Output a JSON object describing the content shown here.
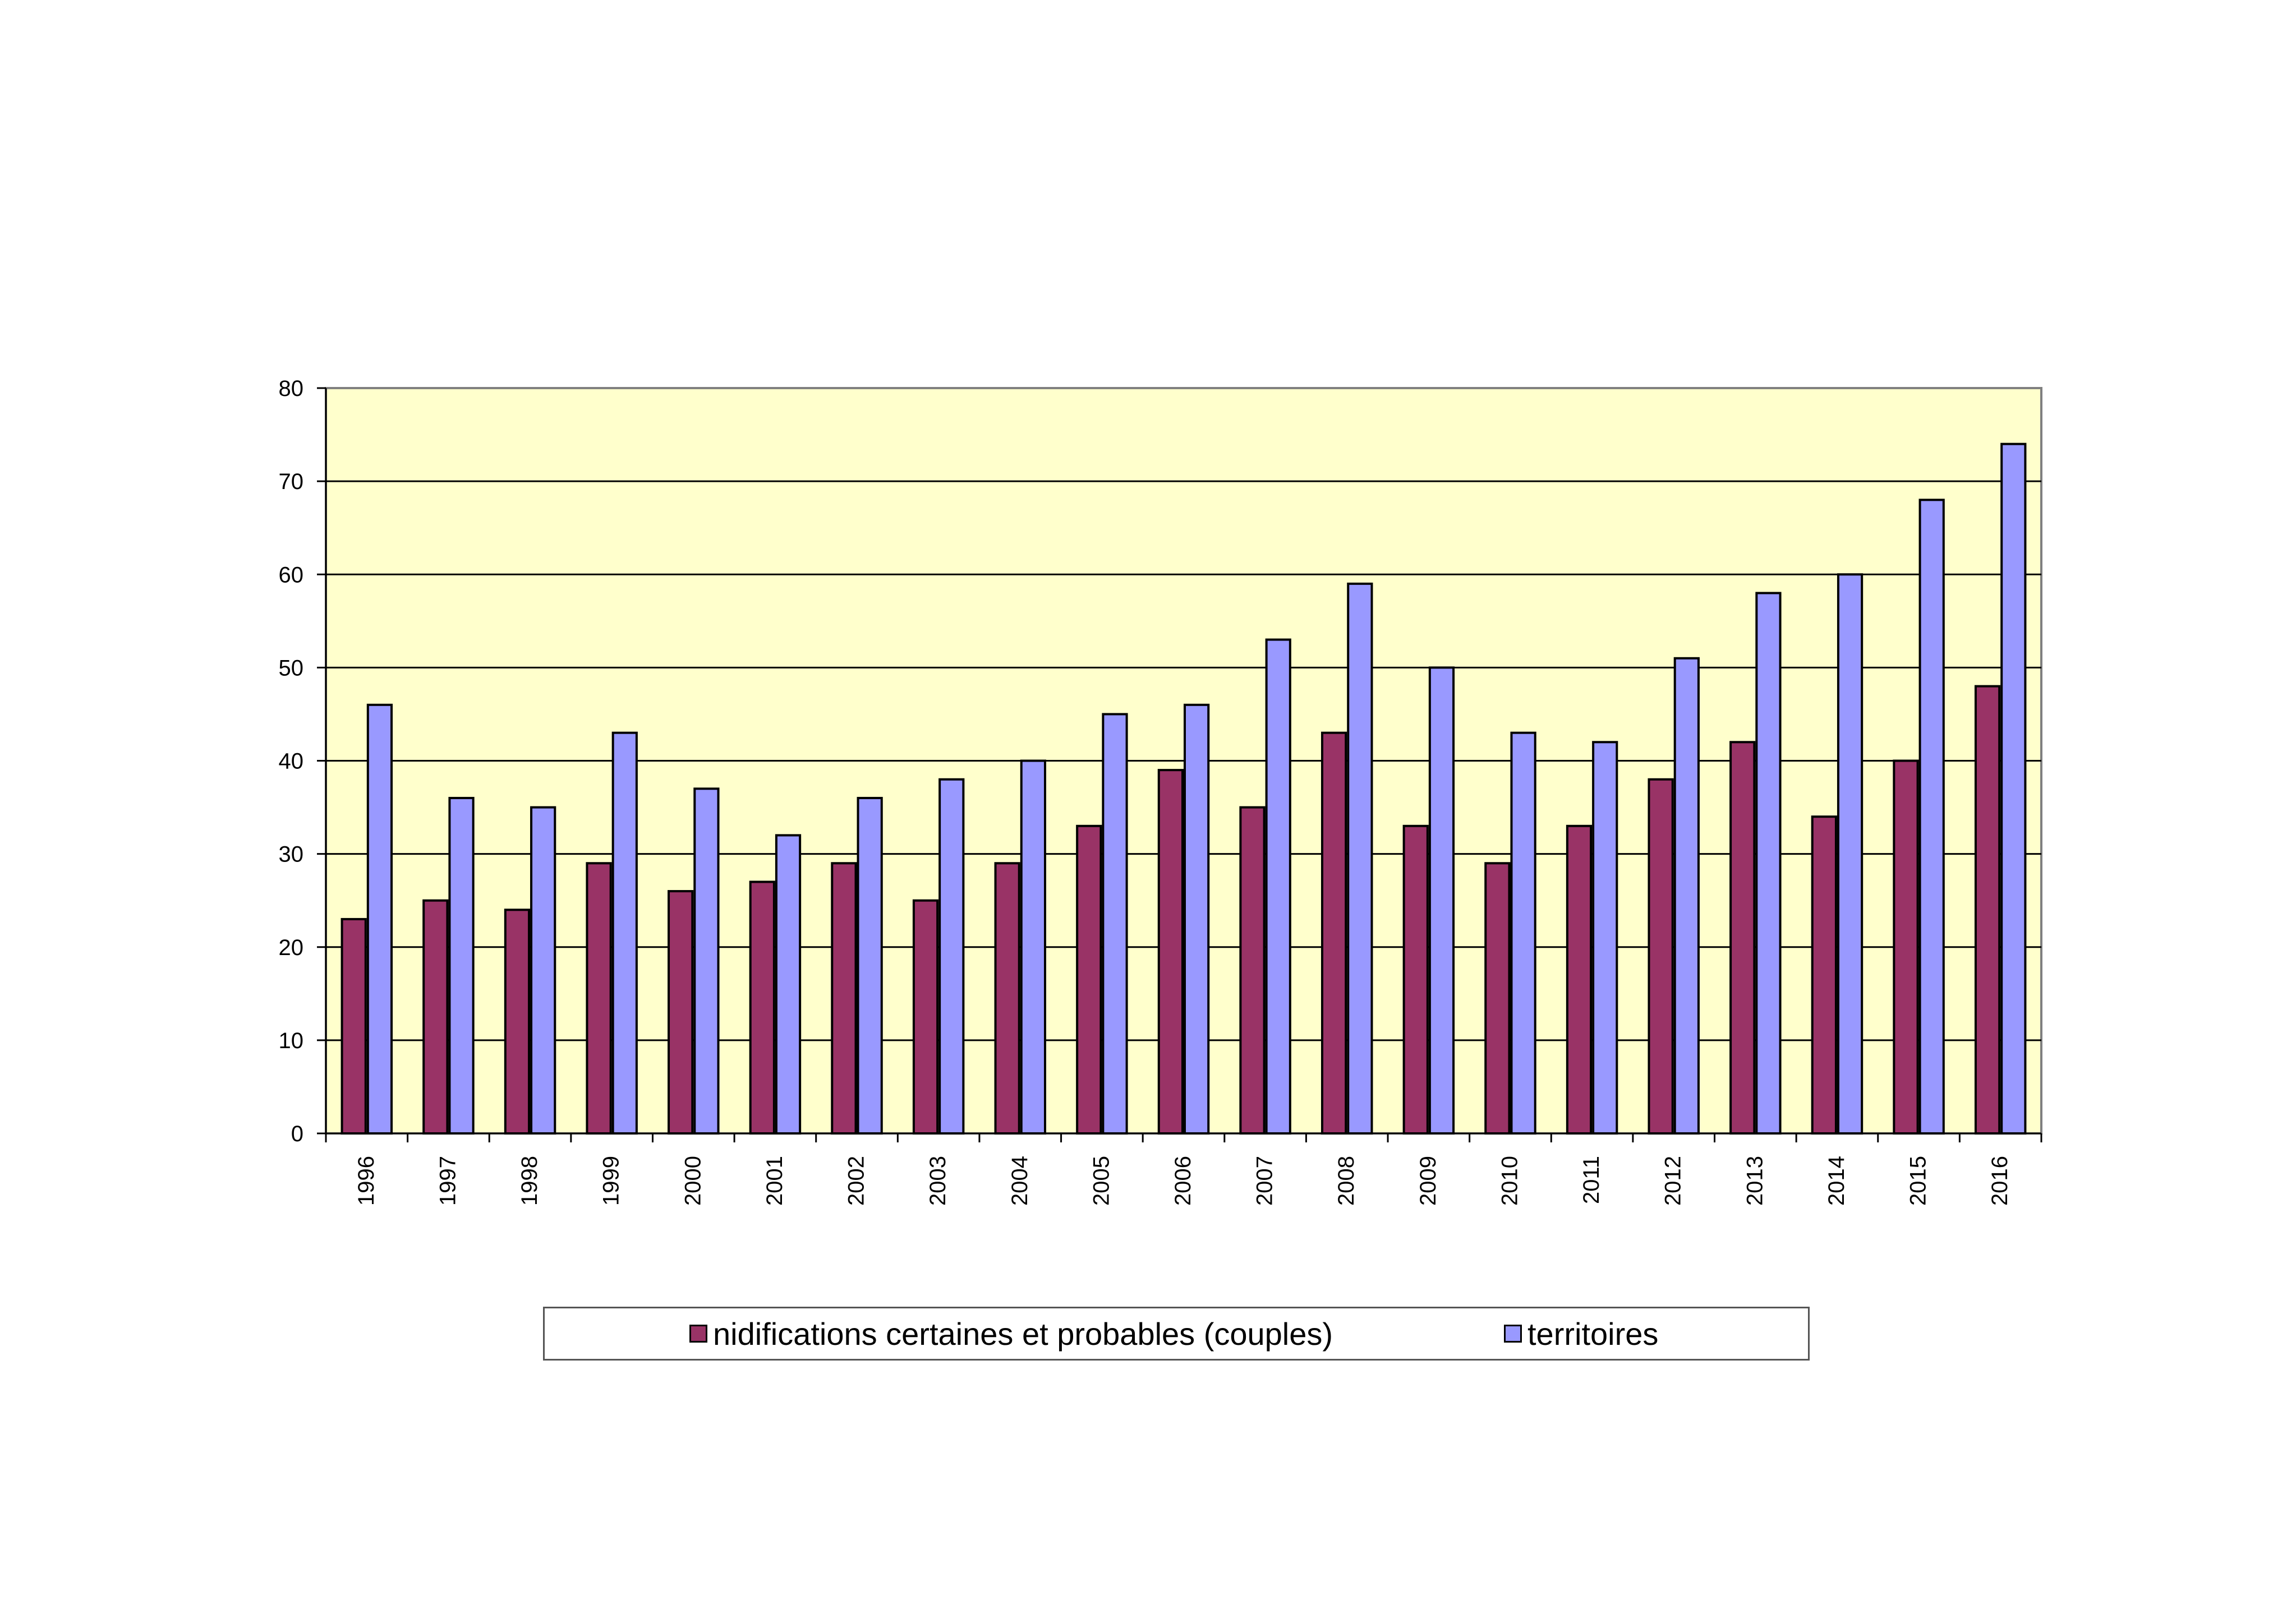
{
  "chart_data": {
    "type": "bar",
    "categories": [
      "1996",
      "1997",
      "1998",
      "1999",
      "2000",
      "2001",
      "2002",
      "2003",
      "2004",
      "2005",
      "2006",
      "2007",
      "2008",
      "2009",
      "2010",
      "2011",
      "2012",
      "2013",
      "2014",
      "2015",
      "2016"
    ],
    "series": [
      {
        "name": "nidifications certaines et probables (couples)",
        "color": "#993366",
        "values": [
          23,
          25,
          24,
          29,
          26,
          27,
          29,
          25,
          29,
          33,
          39,
          35,
          43,
          33,
          29,
          33,
          38,
          42,
          34,
          40,
          48
        ]
      },
      {
        "name": "territoires",
        "color": "#9999ff",
        "values": [
          46,
          36,
          35,
          43,
          37,
          32,
          36,
          38,
          40,
          45,
          46,
          53,
          59,
          50,
          43,
          42,
          51,
          58,
          60,
          68,
          74
        ]
      }
    ],
    "ylim": [
      0,
      80
    ],
    "yticks": [
      "0",
      "10",
      "20",
      "30",
      "40",
      "50",
      "60",
      "70",
      "80"
    ],
    "plot_background": "#ffffcc",
    "grid": true,
    "legend_position": "bottom"
  }
}
